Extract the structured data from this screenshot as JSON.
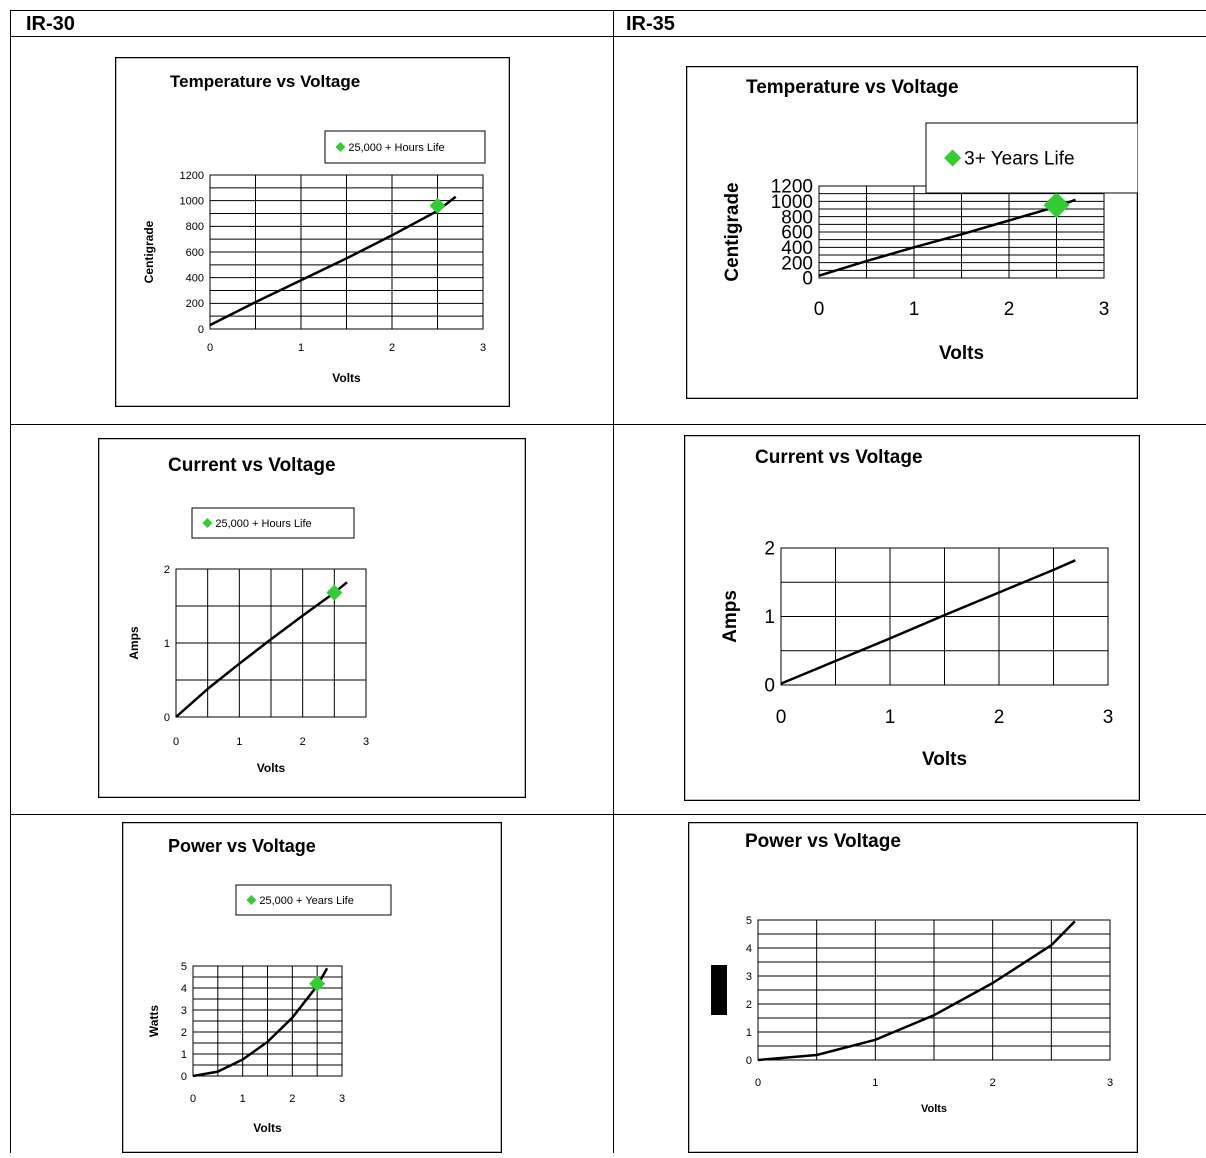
{
  "table": {
    "headers": [
      "IR-30",
      "IR-35"
    ]
  },
  "colors": {
    "line": "#000000",
    "marker": "#33cc33",
    "frame": "#000000",
    "grid": "#000000"
  },
  "chart_data": [
    {
      "id": "ir30-temp",
      "type": "line",
      "title": "Temperature vs Voltage",
      "xlabel": "Volts",
      "ylabel": "Centigrade",
      "xlim": [
        0,
        3
      ],
      "ylim": [
        0,
        1200
      ],
      "xticks": [
        0,
        1,
        2,
        3
      ],
      "yticks": [
        0,
        200,
        400,
        600,
        800,
        1000,
        1200
      ],
      "ygrid": [
        0,
        100,
        200,
        300,
        400,
        500,
        600,
        700,
        800,
        900,
        1000,
        1100,
        1200
      ],
      "xgrid": [
        0,
        0.5,
        1,
        1.5,
        2,
        2.5,
        3
      ],
      "legend": "25,000 + Hours Life",
      "legend_position": "top-right",
      "series": [
        {
          "x": [
            0,
            0.5,
            1,
            1.5,
            2,
            2.5,
            2.7
          ],
          "y": [
            30,
            210,
            380,
            550,
            730,
            920,
            1030
          ]
        }
      ],
      "marker": {
        "x": 2.5,
        "y": 960
      }
    },
    {
      "id": "ir35-temp",
      "type": "line",
      "title": "Temperature vs Voltage",
      "xlabel": "Volts",
      "ylabel": "Centigrade",
      "xlim": [
        0,
        3
      ],
      "ylim": [
        0,
        1200
      ],
      "xticks": [
        0,
        1,
        2,
        3
      ],
      "yticks": [
        0,
        200,
        400,
        600,
        800,
        1000,
        1200
      ],
      "ygrid": [
        0,
        100,
        200,
        300,
        400,
        500,
        600,
        700,
        800,
        900,
        1000,
        1100,
        1200
      ],
      "xgrid": [
        0,
        0.5,
        1,
        1.5,
        2,
        2.5,
        3
      ],
      "legend": "3+ Years Life",
      "legend_position": "top-right",
      "series": [
        {
          "x": [
            0,
            0.5,
            1,
            1.5,
            2,
            2.5,
            2.7
          ],
          "y": [
            30,
            220,
            400,
            570,
            750,
            930,
            1020
          ]
        }
      ],
      "marker": {
        "x": 2.5,
        "y": 950
      }
    },
    {
      "id": "ir30-current",
      "type": "line",
      "title": "Current vs Voltage",
      "xlabel": "Volts",
      "ylabel": "Amps",
      "xlim": [
        0,
        3
      ],
      "ylim": [
        0,
        2
      ],
      "xticks": [
        0,
        1,
        2,
        3
      ],
      "yticks": [
        0,
        1,
        2
      ],
      "ygrid": [
        0,
        0.5,
        1,
        1.5,
        2
      ],
      "xgrid": [
        0,
        0.5,
        1,
        1.5,
        2,
        2.5,
        3
      ],
      "legend": "25,000 + Hours Life",
      "legend_position": "top",
      "series": [
        {
          "x": [
            0,
            0.5,
            1,
            1.5,
            2,
            2.5,
            2.7
          ],
          "y": [
            0,
            0.38,
            0.72,
            1.05,
            1.37,
            1.68,
            1.82
          ]
        }
      ],
      "marker": {
        "x": 2.5,
        "y": 1.68
      }
    },
    {
      "id": "ir35-current",
      "type": "line",
      "title": "Current vs Voltage",
      "xlabel": "Volts",
      "ylabel": "Amps",
      "xlim": [
        0,
        3
      ],
      "ylim": [
        0,
        2
      ],
      "xticks": [
        0,
        1,
        2,
        3
      ],
      "yticks": [
        0,
        1,
        2
      ],
      "ygrid": [
        0,
        0.5,
        1,
        1.5,
        2
      ],
      "xgrid": [
        0,
        0.5,
        1,
        1.5,
        2,
        2.5,
        3
      ],
      "series": [
        {
          "x": [
            0,
            0.5,
            1,
            1.5,
            2,
            2.5,
            2.7
          ],
          "y": [
            0.02,
            0.35,
            0.68,
            1.02,
            1.35,
            1.68,
            1.82
          ]
        }
      ]
    },
    {
      "id": "ir30-power",
      "type": "line",
      "title": "Power vs Voltage",
      "xlabel": "Volts",
      "ylabel": "Watts",
      "xlim": [
        0,
        3
      ],
      "ylim": [
        0,
        5
      ],
      "xticks": [
        0,
        1,
        2,
        3
      ],
      "yticks": [
        0,
        1,
        2,
        3,
        4,
        5
      ],
      "ygrid": [
        0,
        0.5,
        1,
        1.5,
        2,
        2.5,
        3,
        3.5,
        4,
        4.5,
        5
      ],
      "xgrid": [
        0,
        0.5,
        1,
        1.5,
        2,
        2.5,
        3
      ],
      "legend": "25,000 + Years Life",
      "legend_position": "top",
      "series": [
        {
          "x": [
            0,
            0.5,
            1,
            1.5,
            2,
            2.5,
            2.7
          ],
          "y": [
            0,
            0.2,
            0.75,
            1.55,
            2.65,
            4.1,
            4.9
          ]
        }
      ],
      "marker": {
        "x": 2.5,
        "y": 4.2
      }
    },
    {
      "id": "ir35-power",
      "type": "line",
      "title": "Power vs Voltage",
      "xlabel": "Volts",
      "ylabel": "",
      "xlim": [
        0,
        3
      ],
      "ylim": [
        0,
        5
      ],
      "xticks": [
        0,
        1,
        2,
        3
      ],
      "yticks": [
        0,
        1,
        2,
        3,
        4,
        5
      ],
      "ygrid": [
        0,
        0.5,
        1,
        1.5,
        2,
        2.5,
        3,
        3.5,
        4,
        4.5,
        5
      ],
      "xgrid": [
        0,
        0.5,
        1,
        1.5,
        2,
        2.5,
        3
      ],
      "series": [
        {
          "x": [
            0,
            0.5,
            1,
            1.5,
            2,
            2.5,
            2.7
          ],
          "y": [
            0,
            0.18,
            0.72,
            1.6,
            2.75,
            4.1,
            4.95
          ]
        }
      ]
    }
  ]
}
